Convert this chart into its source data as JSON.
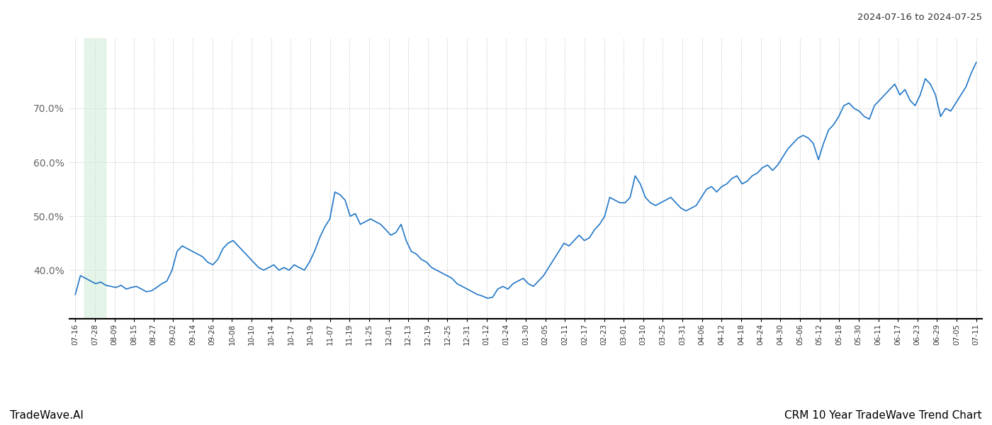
{
  "title_top_right": "2024-07-16 to 2024-07-25",
  "footer_left": "TradeWave.AI",
  "footer_right": "CRM 10 Year TradeWave Trend Chart",
  "line_color": "#2176c7",
  "highlight_color": "#d4edda",
  "highlight_alpha": 0.6,
  "background_color": "#ffffff",
  "grid_color": "#bbbbbb",
  "ylim": [
    31,
    83
  ],
  "yticks": [
    40.0,
    50.0,
    60.0,
    70.0
  ],
  "x_labels": [
    "07-16",
    "07-28",
    "08-09",
    "08-15",
    "08-27",
    "09-02",
    "09-14",
    "09-26",
    "10-08",
    "10-10",
    "10-14",
    "10-17",
    "10-19",
    "11-07",
    "11-19",
    "11-25",
    "12-01",
    "12-13",
    "12-19",
    "12-25",
    "12-31",
    "01-12",
    "01-24",
    "01-30",
    "02-05",
    "02-11",
    "02-17",
    "02-23",
    "03-01",
    "03-10",
    "03-25",
    "03-31",
    "04-06",
    "04-12",
    "04-18",
    "04-24",
    "04-30",
    "05-06",
    "05-12",
    "05-18",
    "05-30",
    "06-11",
    "06-17",
    "06-23",
    "06-29",
    "07-05",
    "07-11"
  ],
  "highlight_label_end": "07-28",
  "y_values": [
    35.5,
    39.0,
    38.5,
    38.0,
    37.5,
    37.8,
    37.2,
    37.0,
    36.8,
    37.2,
    36.5,
    36.8,
    37.0,
    36.5,
    36.0,
    36.2,
    36.8,
    37.5,
    38.0,
    40.0,
    43.5,
    44.5,
    44.0,
    43.5,
    43.0,
    42.5,
    41.5,
    41.0,
    42.0,
    44.0,
    45.0,
    45.5,
    44.5,
    43.5,
    42.5,
    41.5,
    40.5,
    40.0,
    40.5,
    41.0,
    40.0,
    40.5,
    40.0,
    41.0,
    40.5,
    40.0,
    41.5,
    43.5,
    46.0,
    48.0,
    49.5,
    54.5,
    54.0,
    53.0,
    50.0,
    50.5,
    48.5,
    49.0,
    49.5,
    49.0,
    48.5,
    47.5,
    46.5,
    47.0,
    48.5,
    45.5,
    43.5,
    43.0,
    42.0,
    41.5,
    40.5,
    40.0,
    39.5,
    39.0,
    38.5,
    37.5,
    37.0,
    36.5,
    36.0,
    35.5,
    35.2,
    34.8,
    35.0,
    36.5,
    37.0,
    36.5,
    37.5,
    38.0,
    38.5,
    37.5,
    37.0,
    38.0,
    39.0,
    40.5,
    42.0,
    43.5,
    45.0,
    44.5,
    45.5,
    46.5,
    45.5,
    46.0,
    47.5,
    48.5,
    50.0,
    53.5,
    53.0,
    52.5,
    52.5,
    53.5,
    57.5,
    56.0,
    53.5,
    52.5,
    52.0,
    52.5,
    53.0,
    53.5,
    52.5,
    51.5,
    51.0,
    51.5,
    52.0,
    53.5,
    55.0,
    55.5,
    54.5,
    55.5,
    56.0,
    57.0,
    57.5,
    56.0,
    56.5,
    57.5,
    58.0,
    59.0,
    59.5,
    58.5,
    59.5,
    61.0,
    62.5,
    63.5,
    64.5,
    65.0,
    64.5,
    63.5,
    60.5,
    63.5,
    66.0,
    67.0,
    68.5,
    70.5,
    71.0,
    70.0,
    69.5,
    68.5,
    68.0,
    70.5,
    71.5,
    72.5,
    73.5,
    74.5,
    72.5,
    73.5,
    71.5,
    70.5,
    72.5,
    75.5,
    74.5,
    72.5,
    68.5,
    70.0,
    69.5,
    71.0,
    72.5,
    74.0,
    76.5,
    78.5
  ]
}
